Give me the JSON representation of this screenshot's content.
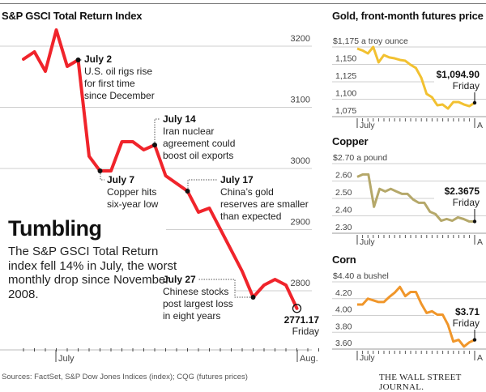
{
  "page": {
    "headline": "Tumbling",
    "deck": "The S&P GSCI Total Return index fell 14% in July, the worst monthly drop since November 2008.",
    "source": "Sources: FactSet, S&P Dow Jones Indices (index); CQG (futures prices)",
    "brand": "THE WALL STREET JOURNAL."
  },
  "chart_data": [
    {
      "id": "gsci",
      "type": "line",
      "title": "S&P GSCI Total Return Index",
      "xlabel": "",
      "ylabel": "",
      "x_tick_labels": [
        "July",
        "Aug."
      ],
      "y_ticks": [
        2800,
        2900,
        3000,
        3100,
        3200
      ],
      "ylim": [
        2750,
        3250
      ],
      "grid": true,
      "color": "#f0242b",
      "values": [
        3178.8,
        3190.7,
        3158.9,
        3226.5,
        3166.9,
        3177.5,
        3019.9,
        2996.0,
        2996.0,
        3043.7,
        3043.7,
        3030.5,
        3038.4,
        2988.1,
        2962.9,
        2928.5,
        2935.1,
        2900.7,
        2831.8,
        2789.4,
        2809.3,
        2818.5,
        2809.3,
        2771.17
      ],
      "x_index": [
        0,
        1,
        2,
        3,
        4,
        5,
        6,
        7,
        8,
        9,
        10,
        11,
        12,
        13,
        15,
        16,
        17,
        18,
        20,
        21,
        22,
        23,
        24,
        25
      ],
      "annotations": [
        {
          "point_index": 5,
          "title": "July 2",
          "lines": [
            "U.S. oil rigs rise",
            "for first time",
            "since December"
          ]
        },
        {
          "point_index": 7,
          "title": "July 7",
          "lines": [
            "Copper hits",
            "six-year low"
          ]
        },
        {
          "point_index": 12,
          "title": "July 14",
          "lines": [
            "Iran nuclear",
            "agreement could",
            "boost oil exports"
          ]
        },
        {
          "point_index": 14,
          "title": "July 17",
          "lines": [
            "China’s gold",
            "reserves are smaller",
            "than expected"
          ]
        },
        {
          "point_index": 19,
          "title": "July 27",
          "lines": [
            "Chinese stocks",
            "post largest loss",
            "in eight years"
          ]
        }
      ],
      "last_value_label": "2771.17",
      "last_value_sub": "Friday"
    },
    {
      "id": "gold",
      "type": "line",
      "title": "Gold, front-month futures price",
      "unit_label": "$1,175 a troy ounce",
      "y_ticks": [
        1075,
        1100,
        1125,
        1150,
        1175
      ],
      "y_tick_labels": [
        "1,075",
        "1,100",
        "1,125",
        "1,150",
        "$1,175 a troy ounce"
      ],
      "ylim": [
        1075,
        1175
      ],
      "x_tick_labels": [
        "July",
        "A"
      ],
      "grid": true,
      "color": "#f2c131",
      "values": [
        1172.7,
        1170.0,
        1165.7,
        1175.0,
        1152.9,
        1163.4,
        1160.0,
        1158.7,
        1156.4,
        1155.2,
        1149.4,
        1144.8,
        1130.8,
        1107.6,
        1102.9,
        1091.3,
        1092.4,
        1086.6,
        1095.9,
        1095.9,
        1092.4,
        1090.0,
        1094.9
      ],
      "last_value_label": "$1,094.90",
      "last_value_sub": "Friday"
    },
    {
      "id": "copper",
      "type": "line",
      "title": "Copper",
      "unit_label": "$2.70 a pound",
      "y_ticks": [
        2.3,
        2.4,
        2.5,
        2.6,
        2.7
      ],
      "y_tick_labels": [
        "2.30",
        "2.40",
        "2.50",
        "2.60",
        "$2.70 a pound"
      ],
      "ylim": [
        2.3,
        2.7
      ],
      "x_tick_labels": [
        "July",
        "A"
      ],
      "grid": true,
      "color": "#b5a86a",
      "values": [
        2.624,
        2.638,
        2.638,
        2.452,
        2.555,
        2.54,
        2.555,
        2.54,
        2.526,
        2.526,
        2.494,
        2.475,
        2.475,
        2.424,
        2.41,
        2.372,
        2.382,
        2.372,
        2.391,
        2.382,
        2.368,
        2.3675
      ],
      "last_value_label": "$2.3675",
      "last_value_sub": "Friday"
    },
    {
      "id": "corn",
      "type": "line",
      "title": "Corn",
      "unit_label": "$4.40 a bushel",
      "y_ticks": [
        3.6,
        3.8,
        4.0,
        4.2,
        4.4
      ],
      "y_tick_labels": [
        "3.60",
        "3.80",
        "4.00",
        "4.20",
        "$4.40 a bushel"
      ],
      "ylim": [
        3.6,
        4.4
      ],
      "x_tick_labels": [
        "July",
        "A"
      ],
      "grid": true,
      "color": "#f0962a",
      "values": [
        4.13,
        4.13,
        4.2,
        4.18,
        4.16,
        4.16,
        4.22,
        4.27,
        4.34,
        4.23,
        4.28,
        4.28,
        4.14,
        4.03,
        4.05,
        4.01,
        4.01,
        3.89,
        3.69,
        3.71,
        3.63,
        3.68,
        3.71
      ],
      "last_value_label": "$3.71",
      "last_value_sub": "Friday"
    }
  ]
}
